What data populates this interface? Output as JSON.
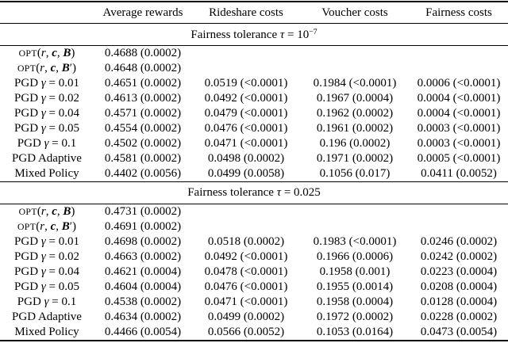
{
  "table": {
    "column_headers": [
      "Average rewards",
      "Rideshare costs",
      "Voucher costs",
      "Fairness costs"
    ],
    "cell_column_names": [
      "cell-average-rewards",
      "cell-rideshare-costs",
      "cell-voucher-costs",
      "cell-fairness-costs"
    ],
    "sections": [
      {
        "title": "Fairness tolerance τ = 10−7",
        "title_parts": [
          {
            "text": "Fairness tolerance ",
            "style": "rm"
          },
          {
            "text": "τ",
            "style": "it"
          },
          {
            "text": " = 10",
            "style": "rm"
          },
          {
            "text": "−7",
            "style": "sup"
          }
        ],
        "rows": [
          {
            "label": "OPT(r, c, B)",
            "label_parts": [
              {
                "text": "OPT",
                "style": "sc"
              },
              {
                "text": "(",
                "style": "rm"
              },
              {
                "text": "r",
                "style": "it"
              },
              {
                "text": ", ",
                "style": "rm"
              },
              {
                "text": "c",
                "style": "bi"
              },
              {
                "text": ", ",
                "style": "rm"
              },
              {
                "text": "B",
                "style": "bi"
              },
              {
                "text": ")",
                "style": "rm"
              }
            ],
            "cells": [
              "0.4688 (0.0002)",
              "",
              "",
              ""
            ]
          },
          {
            "label": "OPT(r, c, B′)",
            "label_parts": [
              {
                "text": "OPT",
                "style": "sc"
              },
              {
                "text": "(",
                "style": "rm"
              },
              {
                "text": "r",
                "style": "it"
              },
              {
                "text": ", ",
                "style": "rm"
              },
              {
                "text": "c",
                "style": "bi"
              },
              {
                "text": ", ",
                "style": "rm"
              },
              {
                "text": "B",
                "style": "bi"
              },
              {
                "text": "′",
                "style": "rm"
              },
              {
                "text": ")",
                "style": "rm"
              }
            ],
            "cells": [
              "0.4648 (0.0002)",
              "",
              "",
              ""
            ]
          },
          {
            "label": "PGD γ = 0.01",
            "label_parts": [
              {
                "text": "PGD ",
                "style": "rm"
              },
              {
                "text": "γ",
                "style": "it"
              },
              {
                "text": " = 0.01",
                "style": "rm"
              }
            ],
            "cells": [
              "0.4651 (0.0002)",
              "0.0519 (<0.0001)",
              "0.1984 (<0.0001)",
              "0.0006 (<0.0001)"
            ]
          },
          {
            "label": "PGD γ = 0.02",
            "label_parts": [
              {
                "text": "PGD ",
                "style": "rm"
              },
              {
                "text": "γ",
                "style": "it"
              },
              {
                "text": " = 0.02",
                "style": "rm"
              }
            ],
            "cells": [
              "0.4613 (0.0002)",
              "0.0492 (<0.0001)",
              "0.1967 (0.0004)",
              "0.0004 (<0.0001)"
            ]
          },
          {
            "label": "PGD γ = 0.04",
            "label_parts": [
              {
                "text": "PGD ",
                "style": "rm"
              },
              {
                "text": "γ",
                "style": "it"
              },
              {
                "text": " = 0.04",
                "style": "rm"
              }
            ],
            "cells": [
              "0.4571 (0.0002)",
              "0.0479 (<0.0001)",
              "0.1962 (0.0002)",
              "0.0004 (<0.0001)"
            ]
          },
          {
            "label": "PGD γ = 0.05",
            "label_parts": [
              {
                "text": "PGD ",
                "style": "rm"
              },
              {
                "text": "γ",
                "style": "it"
              },
              {
                "text": " = 0.05",
                "style": "rm"
              }
            ],
            "cells": [
              "0.4554 (0.0002)",
              "0.0476 (<0.0001)",
              "0.1961 (0.0002)",
              "0.0003 (<0.0001)"
            ]
          },
          {
            "label": "PGD γ = 0.1",
            "label_parts": [
              {
                "text": "PGD ",
                "style": "rm"
              },
              {
                "text": "γ",
                "style": "it"
              },
              {
                "text": " = 0.1",
                "style": "rm"
              }
            ],
            "cells": [
              "0.4502 (0.0002)",
              "0.0471 (<0.0001)",
              "0.196 (0.0002)",
              "0.0003 (<0.0001)"
            ]
          },
          {
            "label": "PGD Adaptive",
            "label_parts": [
              {
                "text": "PGD Adaptive",
                "style": "rm"
              }
            ],
            "cells": [
              "0.4581 (0.0002)",
              "0.0498 (0.0002)",
              "0.1971 (0.0002)",
              "0.0005 (<0.0001)"
            ]
          },
          {
            "label": "Mixed Policy",
            "label_parts": [
              {
                "text": "Mixed Policy",
                "style": "rm"
              }
            ],
            "cells": [
              "0.4402 (0.0056)",
              "0.0499 (0.0058)",
              "0.1056 (0.017)",
              "0.0411 (0.0052)"
            ]
          }
        ]
      },
      {
        "title": "Fairness tolerance τ = 0.025",
        "title_parts": [
          {
            "text": "Fairness tolerance ",
            "style": "rm"
          },
          {
            "text": "τ",
            "style": "it"
          },
          {
            "text": " = 0.025",
            "style": "rm"
          }
        ],
        "rows": [
          {
            "label": "OPT(r, c, B)",
            "label_parts": [
              {
                "text": "OPT",
                "style": "sc"
              },
              {
                "text": "(",
                "style": "rm"
              },
              {
                "text": "r",
                "style": "it"
              },
              {
                "text": ", ",
                "style": "rm"
              },
              {
                "text": "c",
                "style": "bi"
              },
              {
                "text": ", ",
                "style": "rm"
              },
              {
                "text": "B",
                "style": "bi"
              },
              {
                "text": ")",
                "style": "rm"
              }
            ],
            "cells": [
              "0.4731 (0.0002)",
              "",
              "",
              ""
            ]
          },
          {
            "label": "OPT(r, c, B′)",
            "label_parts": [
              {
                "text": "OPT",
                "style": "sc"
              },
              {
                "text": "(",
                "style": "rm"
              },
              {
                "text": "r",
                "style": "it"
              },
              {
                "text": ", ",
                "style": "rm"
              },
              {
                "text": "c",
                "style": "bi"
              },
              {
                "text": ", ",
                "style": "rm"
              },
              {
                "text": "B",
                "style": "bi"
              },
              {
                "text": "′",
                "style": "rm"
              },
              {
                "text": ")",
                "style": "rm"
              }
            ],
            "cells": [
              "0.4691 (0.0002)",
              "",
              "",
              ""
            ]
          },
          {
            "label": "PGD γ = 0.01",
            "label_parts": [
              {
                "text": "PGD ",
                "style": "rm"
              },
              {
                "text": "γ",
                "style": "it"
              },
              {
                "text": " = 0.01",
                "style": "rm"
              }
            ],
            "cells": [
              "0.4698 (0.0002)",
              "0.0518 (0.0002)",
              "0.1983 (<0.0001)",
              "0.0246 (0.0002)"
            ]
          },
          {
            "label": "PGD γ = 0.02",
            "label_parts": [
              {
                "text": "PGD ",
                "style": "rm"
              },
              {
                "text": "γ",
                "style": "it"
              },
              {
                "text": " = 0.02",
                "style": "rm"
              }
            ],
            "cells": [
              "0.4663 (0.0002)",
              "0.0492 (<0.0001)",
              "0.1966 (0.0006)",
              "0.0242 (0.0002)"
            ]
          },
          {
            "label": "PGD γ = 0.04",
            "label_parts": [
              {
                "text": "PGD ",
                "style": "rm"
              },
              {
                "text": "γ",
                "style": "it"
              },
              {
                "text": " = 0.04",
                "style": "rm"
              }
            ],
            "cells": [
              "0.4621 (0.0004)",
              "0.0478 (<0.0001)",
              "0.1958 (0.001)",
              "0.0223 (0.0004)"
            ]
          },
          {
            "label": "PGD γ = 0.05",
            "label_parts": [
              {
                "text": "PGD ",
                "style": "rm"
              },
              {
                "text": "γ",
                "style": "it"
              },
              {
                "text": " = 0.05",
                "style": "rm"
              }
            ],
            "cells": [
              "0.4604 (0.0004)",
              "0.0476 (<0.0001)",
              "0.1955 (0.0014)",
              "0.0208 (0.0004)"
            ]
          },
          {
            "label": "PGD γ = 0.1",
            "label_parts": [
              {
                "text": "PGD ",
                "style": "rm"
              },
              {
                "text": "γ",
                "style": "it"
              },
              {
                "text": " = 0.1",
                "style": "rm"
              }
            ],
            "cells": [
              "0.4538 (0.0002)",
              "0.0471 (<0.0001)",
              "0.1958 (0.0004)",
              "0.0128 (0.0004)"
            ]
          },
          {
            "label": "PGD Adaptive",
            "label_parts": [
              {
                "text": "PGD Adaptive",
                "style": "rm"
              }
            ],
            "cells": [
              "0.4634 (0.0002)",
              "0.0499 (0.0002)",
              "0.1972 (0.0002)",
              "0.0228 (0.0002)"
            ]
          },
          {
            "label": "Mixed Policy",
            "label_parts": [
              {
                "text": "Mixed Policy",
                "style": "rm"
              }
            ],
            "cells": [
              "0.4466 (0.0054)",
              "0.0566 (0.0052)",
              "0.1053 (0.0164)",
              "0.0473 (0.0054)"
            ]
          }
        ]
      }
    ]
  }
}
